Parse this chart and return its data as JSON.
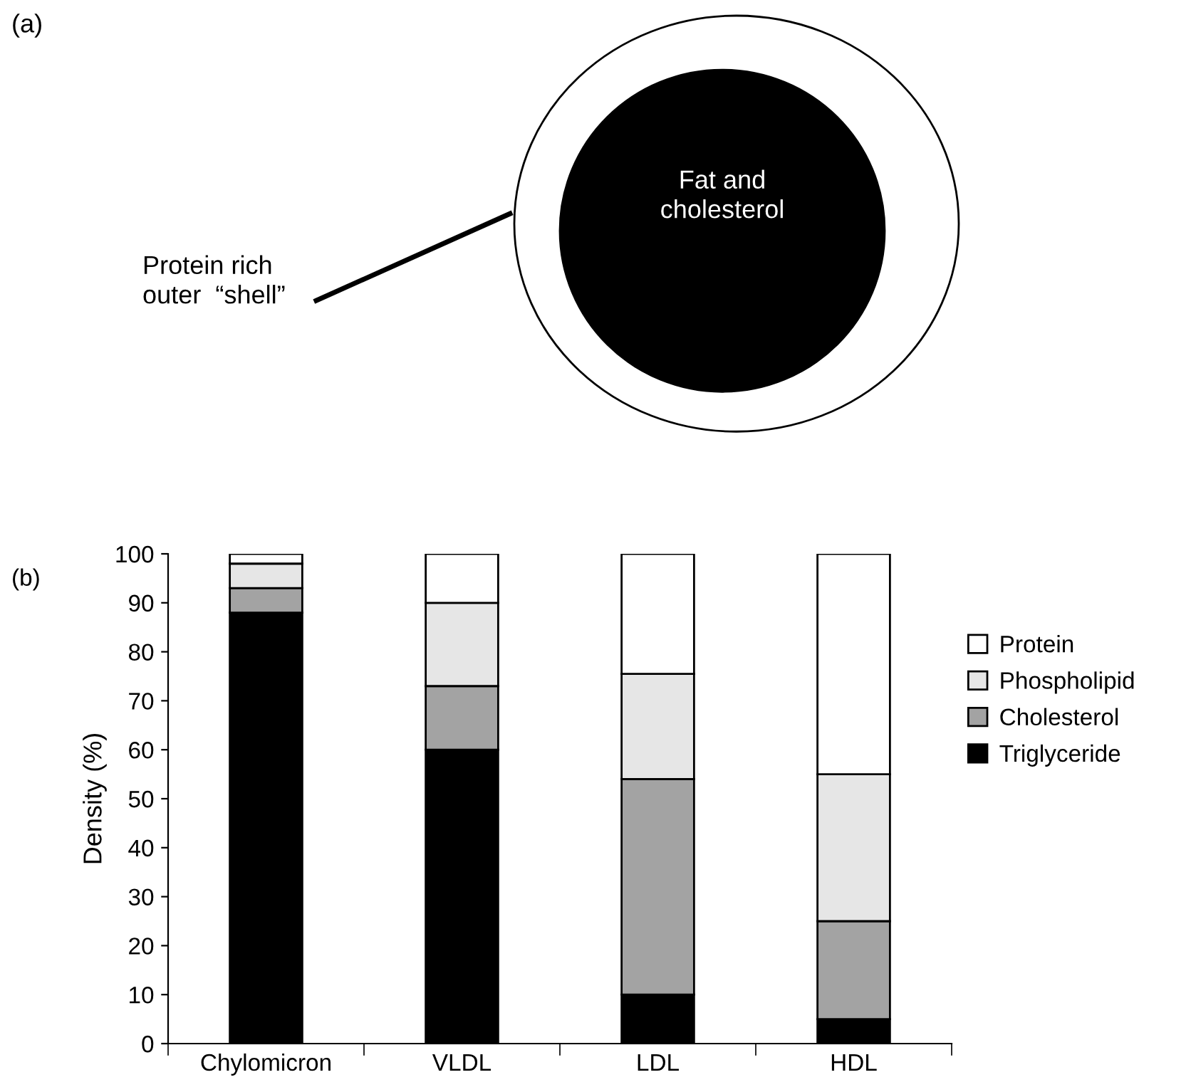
{
  "chart_data": {
    "type": "bar",
    "stacked": true,
    "ylabel": "Density (%)",
    "categories": [
      "Chylomicron",
      "VLDL",
      "LDL",
      "HDL"
    ],
    "series": [
      {
        "name": "Triglyceride",
        "color": "#000000",
        "values": [
          88,
          60,
          10,
          5
        ]
      },
      {
        "name": "Cholesterol",
        "color": "#a3a3a3",
        "values": [
          5,
          13,
          44,
          20
        ]
      },
      {
        "name": "Phospholipid",
        "color": "#e6e6e6",
        "values": [
          5,
          17,
          21.5,
          30
        ]
      },
      {
        "name": "Protein",
        "color": "#ffffff",
        "values": [
          2,
          10,
          24.5,
          45
        ]
      }
    ],
    "ylim": [
      0,
      100
    ],
    "yticks": [
      0,
      10,
      20,
      30,
      40,
      50,
      60,
      70,
      80,
      90,
      100
    ],
    "grid": false,
    "legend": "right",
    "annotations": [
      "(a)",
      "(b)",
      "Fat and\ncholesterol",
      "Protein rich\nouter  “shell”"
    ]
  }
}
